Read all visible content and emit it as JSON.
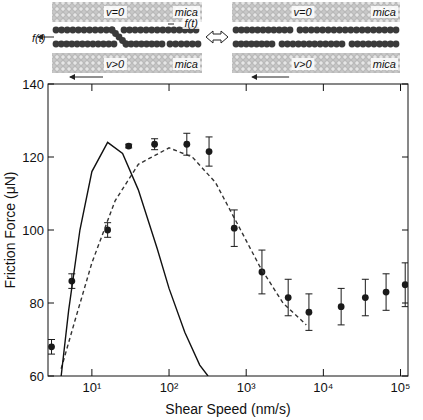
{
  "chart_data": {
    "type": "scatter",
    "x_label": "Shear Speed (nm/s)",
    "y_label": "Friction Force  (μN)",
    "log": "x",
    "xlim": [
      2.7,
      125000
    ],
    "xticks": [
      {
        "value": 10,
        "label": "10¹"
      },
      {
        "value": 100,
        "label": "10²"
      },
      {
        "value": 1000,
        "label": "10³"
      },
      {
        "value": 10000,
        "label": "10⁴"
      },
      {
        "value": 100000,
        "label": "10⁵"
      }
    ],
    "ylim": [
      60,
      140
    ],
    "yticks": [
      60,
      80,
      100,
      120,
      140
    ],
    "grid": false,
    "series": [
      {
        "type": "scatter",
        "marker": "circle",
        "color": "#1a1a1a",
        "x": [
          3,
          5.5,
          16,
          30,
          65,
          170,
          330,
          700,
          1600,
          3500,
          6500,
          17000,
          35000,
          65000,
          115000
        ],
        "values": [
          68,
          86,
          100,
          123,
          123.5,
          123.5,
          121.5,
          100.5,
          88.5,
          81.5,
          77.5,
          79,
          81.5,
          83,
          85
        ],
        "errors": [
          2,
          2,
          2,
          0.5,
          1.5,
          3,
          4,
          5,
          6,
          5,
          5,
          5,
          5,
          5,
          6
        ]
      },
      {
        "type": "line",
        "line_style": "dashed",
        "color": "#333333",
        "x": [
          4,
          6,
          10,
          20,
          40,
          100,
          200,
          400,
          800,
          1500,
          3000,
          6000
        ],
        "values": [
          62,
          75,
          91,
          108,
          118,
          122.5,
          120,
          113,
          101,
          90,
          80,
          74
        ]
      },
      {
        "type": "line",
        "line_style": "solid",
        "color": "#111111",
        "x": [
          4,
          5,
          7,
          10,
          16,
          25,
          40,
          70,
          100,
          160,
          250,
          320
        ],
        "values": [
          60,
          78,
          100,
          116,
          124,
          121,
          111,
          95,
          84,
          72,
          63,
          60
        ]
      }
    ]
  },
  "diagram": {
    "left": {
      "top_label": "v=0",
      "top_material": "mica",
      "bottom_label": "v>0",
      "bottom_material": "mica",
      "force_labels": [
        "f(t)",
        "f(t)"
      ]
    },
    "right": {
      "top_label": "v=0",
      "top_material": "mica",
      "bottom_label": "v>0",
      "bottom_material": "mica"
    }
  }
}
